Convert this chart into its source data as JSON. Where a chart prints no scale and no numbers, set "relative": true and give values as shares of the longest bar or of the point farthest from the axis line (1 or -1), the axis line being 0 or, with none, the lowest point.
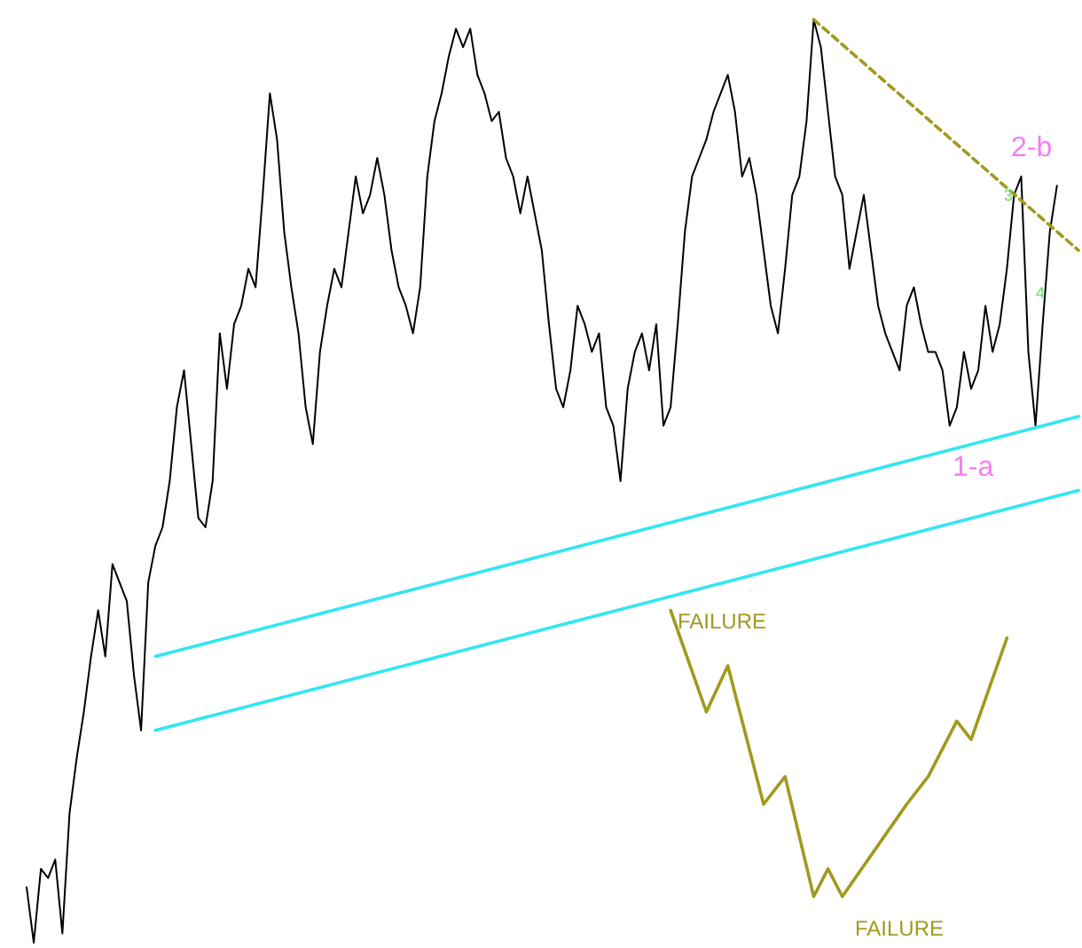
{
  "chart_data": {
    "type": "line",
    "relative": true,
    "categories": [
      null,
      null,
      null,
      null,
      null,
      null,
      null,
      null,
      null,
      null,
      null,
      null,
      null,
      null,
      null,
      null,
      null,
      null,
      null,
      null,
      null,
      null,
      null,
      null,
      null,
      null,
      null,
      null,
      null,
      null,
      null,
      null,
      null,
      null,
      null,
      null,
      null,
      null,
      null,
      null,
      null,
      null,
      null,
      null,
      null,
      null,
      null,
      null,
      null,
      null,
      null,
      null,
      null,
      null,
      null,
      null,
      null,
      null,
      null,
      null,
      null,
      null,
      null,
      null,
      null,
      null,
      null,
      null,
      null,
      null,
      null,
      null,
      null,
      null,
      null,
      null,
      null,
      null,
      null,
      null,
      null,
      null,
      null,
      null,
      null,
      null,
      null,
      null,
      null,
      null,
      null,
      null,
      null,
      null,
      null,
      null,
      null,
      null,
      null,
      null,
      null,
      null,
      null,
      null,
      null,
      null,
      null,
      null,
      null,
      null,
      null,
      null,
      null,
      null,
      null,
      null,
      null,
      null,
      null,
      null,
      null,
      null,
      null,
      null,
      null,
      null,
      null,
      null,
      null,
      null,
      null,
      null,
      null,
      null,
      null,
      null,
      null,
      null,
      null,
      null,
      null,
      null,
      null,
      null,
      null,
      null,
      null,
      null
    ],
    "series": [
      {
        "color": "#000000",
        "values": [
          0.06,
          0,
          0.08,
          0.07,
          0.09,
          0.01,
          0.14,
          0.2,
          0.25,
          0.31,
          0.36,
          0.31,
          0.41,
          0.39,
          0.37,
          0.29,
          0.23,
          0.39,
          0.43,
          0.45,
          0.5,
          0.58,
          0.62,
          0.54,
          0.46,
          0.45,
          0.5,
          0.66,
          0.6,
          0.67,
          0.69,
          0.73,
          0.71,
          0.81,
          0.92,
          0.87,
          0.77,
          0.71,
          0.66,
          0.58,
          0.54,
          0.64,
          0.69,
          0.73,
          0.71,
          0.77,
          0.83,
          0.79,
          0.81,
          0.85,
          0.81,
          0.75,
          0.71,
          0.69,
          0.66,
          0.71,
          0.83,
          0.89,
          0.92,
          0.96,
          0.99,
          0.97,
          0.99,
          0.94,
          0.92,
          0.89,
          0.9,
          0.85,
          0.83,
          0.79,
          0.83,
          0.79,
          0.75,
          0.67,
          0.6,
          0.58,
          0.62,
          0.69,
          0.67,
          0.64,
          0.66,
          0.58,
          0.56,
          0.5,
          0.6,
          0.64,
          0.66,
          0.62,
          0.67,
          0.56,
          0.58,
          0.67,
          0.77,
          0.83,
          0.85,
          0.87,
          0.9,
          0.92,
          0.94,
          0.9,
          0.83,
          0.85,
          0.81,
          0.75,
          0.69,
          0.66,
          0.73,
          0.81,
          0.83,
          0.89,
          1,
          0.97,
          0.9,
          0.83,
          0.81,
          0.73,
          0.77,
          0.81,
          0.75,
          0.69,
          0.66,
          0.64,
          0.62,
          0.69,
          0.71,
          0.67,
          0.64,
          0.64,
          0.62,
          0.56,
          0.58,
          0.64,
          0.6,
          0.62,
          0.69,
          0.64,
          0.67,
          0.73,
          0.81,
          0.83,
          0.64,
          0.56,
          0.67,
          0.77,
          0.82,
          null,
          null,
          null
        ]
      },
      {
        "color": "#33e6f2",
        "values": [
          null,
          null,
          null,
          null,
          null,
          null,
          null,
          null,
          null,
          null,
          null,
          null,
          null,
          null,
          null,
          null,
          null,
          null,
          0.31,
          null,
          null,
          null,
          null,
          null,
          null,
          null,
          null,
          null,
          null,
          null,
          null,
          null,
          null,
          null,
          null,
          null,
          null,
          null,
          null,
          null,
          null,
          null,
          null,
          null,
          null,
          null,
          null,
          null,
          null,
          null,
          null,
          null,
          null,
          null,
          null,
          null,
          null,
          null,
          null,
          null,
          null,
          null,
          null,
          null,
          null,
          null,
          null,
          null,
          null,
          null,
          null,
          null,
          null,
          null,
          null,
          null,
          null,
          null,
          null,
          null,
          null,
          null,
          null,
          null,
          null,
          null,
          null,
          null,
          null,
          null,
          null,
          null,
          null,
          null,
          null,
          null,
          null,
          null,
          null,
          null,
          null,
          null,
          null,
          null,
          null,
          null,
          null,
          null,
          null,
          null,
          null,
          null,
          null,
          null,
          null,
          null,
          null,
          null,
          null,
          null,
          null,
          null,
          null,
          null,
          null,
          null,
          null,
          null,
          null,
          null,
          null,
          null,
          null,
          null,
          null,
          null,
          null,
          null,
          null,
          null,
          null,
          null,
          null,
          null,
          null,
          null,
          null,
          0.57
        ]
      },
      {
        "color": "#33e6f2",
        "values": [
          null,
          null,
          null,
          null,
          null,
          null,
          null,
          null,
          null,
          null,
          null,
          null,
          null,
          null,
          null,
          null,
          null,
          null,
          0.23,
          null,
          null,
          null,
          null,
          null,
          null,
          null,
          null,
          null,
          null,
          null,
          null,
          null,
          null,
          null,
          null,
          null,
          null,
          null,
          null,
          null,
          null,
          null,
          null,
          null,
          null,
          null,
          null,
          null,
          null,
          null,
          null,
          null,
          null,
          null,
          null,
          null,
          null,
          null,
          null,
          null,
          null,
          null,
          null,
          null,
          null,
          null,
          null,
          null,
          null,
          null,
          null,
          null,
          null,
          null,
          null,
          null,
          null,
          null,
          null,
          null,
          null,
          null,
          null,
          null,
          null,
          null,
          null,
          null,
          null,
          null,
          null,
          null,
          null,
          null,
          null,
          null,
          null,
          null,
          null,
          null,
          null,
          null,
          null,
          null,
          null,
          null,
          null,
          null,
          null,
          null,
          null,
          null,
          null,
          null,
          null,
          null,
          null,
          null,
          null,
          null,
          null,
          null,
          null,
          null,
          null,
          null,
          null,
          null,
          null,
          null,
          null,
          null,
          null,
          null,
          null,
          null,
          null,
          null,
          null,
          null,
          null,
          null,
          null,
          null,
          null,
          null,
          null,
          0.49
        ]
      },
      {
        "color": "#a09a1e",
        "values": [
          null,
          null,
          null,
          null,
          null,
          null,
          null,
          null,
          null,
          null,
          null,
          null,
          null,
          null,
          null,
          null,
          null,
          null,
          null,
          null,
          null,
          null,
          null,
          null,
          null,
          null,
          null,
          null,
          null,
          null,
          null,
          null,
          null,
          null,
          null,
          null,
          null,
          null,
          null,
          null,
          null,
          null,
          null,
          null,
          null,
          null,
          null,
          null,
          null,
          null,
          null,
          null,
          null,
          null,
          null,
          null,
          null,
          null,
          null,
          null,
          null,
          null,
          null,
          null,
          null,
          null,
          null,
          null,
          null,
          null,
          null,
          null,
          null,
          null,
          null,
          null,
          null,
          null,
          null,
          null,
          null,
          null,
          null,
          null,
          null,
          null,
          null,
          null,
          null,
          null,
          0.36,
          null,
          null,
          null,
          null,
          0.25,
          null,
          null,
          0.3,
          null,
          null,
          null,
          null,
          0.15,
          null,
          null,
          0.18,
          null,
          null,
          null,
          0.05,
          null,
          0.08,
          null,
          0.05,
          null,
          null,
          null,
          null,
          null,
          null,
          null,
          null,
          0.15,
          null,
          null,
          0.18,
          null,
          null,
          null,
          0.24,
          null,
          0.22,
          null,
          null,
          null,
          null,
          0.33,
          null,
          null,
          null,
          null,
          null,
          null,
          null,
          null,
          null,
          null
        ]
      },
      {
        "color": "#a09a1e",
        "line_style": "dashed",
        "values": [
          null,
          null,
          null,
          null,
          null,
          null,
          null,
          null,
          null,
          null,
          null,
          null,
          null,
          null,
          null,
          null,
          null,
          null,
          null,
          null,
          null,
          null,
          null,
          null,
          null,
          null,
          null,
          null,
          null,
          null,
          null,
          null,
          null,
          null,
          null,
          null,
          null,
          null,
          null,
          null,
          null,
          null,
          null,
          null,
          null,
          null,
          null,
          null,
          null,
          null,
          null,
          null,
          null,
          null,
          null,
          null,
          null,
          null,
          null,
          null,
          null,
          null,
          null,
          null,
          null,
          null,
          null,
          null,
          null,
          null,
          null,
          null,
          null,
          null,
          null,
          null,
          null,
          null,
          null,
          null,
          null,
          null,
          null,
          null,
          null,
          null,
          null,
          null,
          null,
          null,
          null,
          null,
          null,
          null,
          null,
          null,
          null,
          null,
          null,
          null,
          null,
          null,
          null,
          null,
          null,
          null,
          null,
          null,
          null,
          null,
          1,
          null,
          null,
          null,
          null,
          null,
          null,
          null,
          null,
          null,
          null,
          null,
          null,
          null,
          null,
          null,
          null,
          null,
          null,
          null,
          null,
          null,
          null,
          null,
          null,
          null,
          null,
          null,
          null,
          null,
          null,
          null,
          null,
          null,
          null,
          null,
          null,
          0.75
        ]
      }
    ],
    "annotations": [
      "2-b",
      "1-a",
      "FAILURE",
      "FAILURE",
      "3",
      "4"
    ]
  }
}
